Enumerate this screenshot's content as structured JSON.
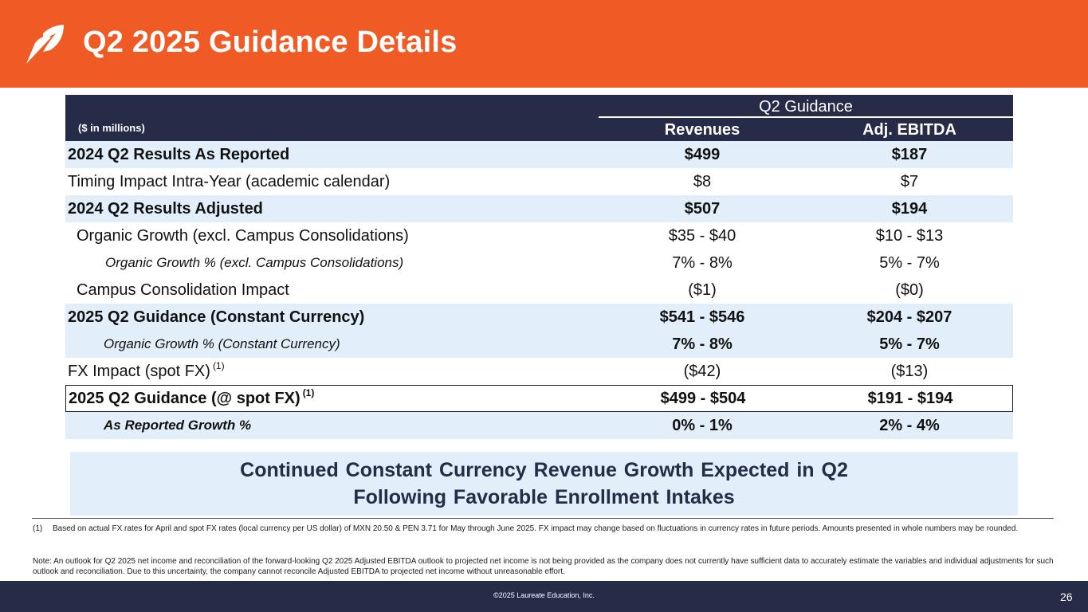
{
  "header": {
    "title": "Q2 2025 Guidance Details",
    "accent_color": "#f05a24",
    "logo": "leaf-logo-icon"
  },
  "table": {
    "units_label": "($ in millions)",
    "group_header": "Q2 Guidance",
    "col_revenues": "Revenues",
    "col_ebitda": "Adj. EBITDA",
    "header_color": "#262b48",
    "shade_color": "#e2effb",
    "rows": [
      {
        "label": "2024 Q2 Results As Reported",
        "revenues": "$499",
        "ebitda": "$187"
      },
      {
        "label": "Timing Impact Intra-Year (academic calendar)",
        "revenues": "$8",
        "ebitda": "$7"
      },
      {
        "label": "2024 Q2 Results Adjusted",
        "revenues": "$507",
        "ebitda": "$194"
      },
      {
        "label": "Organic Growth (excl. Campus Consolidations)",
        "revenues": "$35 - $40",
        "ebitda": "$10 - $13"
      },
      {
        "label": "Organic Growth % (excl. Campus Consolidations)",
        "revenues": "7% - 8%",
        "ebitda": "5% - 7%"
      },
      {
        "label": "Campus Consolidation Impact",
        "revenues": "($1)",
        "ebitda": "($0)"
      },
      {
        "label": "2025 Q2 Guidance (Constant Currency)",
        "revenues": "$541 - $546",
        "ebitda": "$204 - $207"
      },
      {
        "label": "Organic Growth % (Constant Currency)",
        "revenues": "7% - 8%",
        "ebitda": "5% - 7%"
      },
      {
        "label": "FX Impact (spot FX)",
        "sup": "(1)",
        "revenues": "($42)",
        "ebitda": "($13)"
      },
      {
        "label": "2025 Q2 Guidance (@ spot FX)",
        "sup": "(1)",
        "revenues": "$499 - $504",
        "ebitda": "$191 - $194"
      },
      {
        "label": "As Reported Growth %",
        "revenues": "0% - 1%",
        "ebitda": "2% - 4%"
      }
    ]
  },
  "callout": {
    "line1": "Continued Constant Currency Revenue Growth Expected in Q2",
    "line2": "Following Favorable Enrollment Intakes"
  },
  "footnotes": {
    "fn1_num": "(1)",
    "fn1_text": "Based on actual FX rates for April and spot FX rates (local currency per US dollar) of MXN 20.50 & PEN 3.71 for May through June 2025. FX impact may change based on fluctuations in currency rates in future periods. Amounts presented in whole numbers may be rounded.",
    "note": "Note: An outlook for Q2 2025 net income and reconciliation of the forward-looking Q2 2025 Adjusted EBITDA outlook to projected net income is not being provided as the company does not currently have sufficient data to accurately estimate the variables and individual adjustments for such outlook and reconciliation. Due to this uncertainty, the company cannot reconcile Adjusted EBITDA to projected net income without unreasonable effort."
  },
  "footer": {
    "copyright": "©2025 Laureate Education, Inc.",
    "page_number": "26"
  }
}
